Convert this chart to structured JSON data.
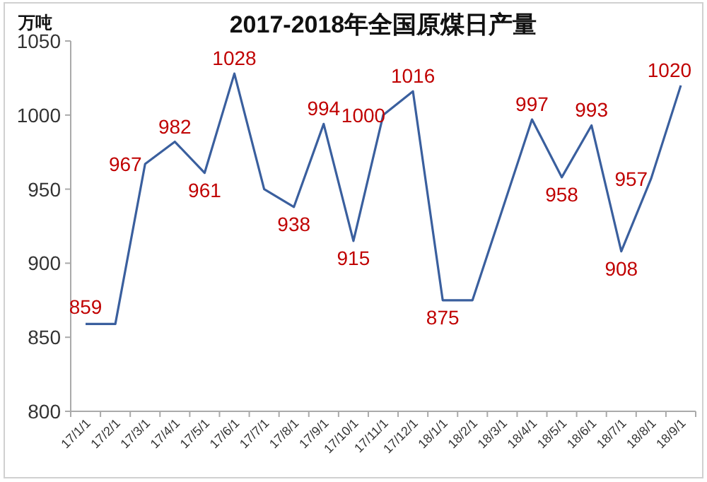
{
  "chart_data": {
    "type": "line",
    "title": "2017-2018年全国原煤日产量",
    "ylabel": "万吨",
    "categories": [
      "17/1/1",
      "17/2/1",
      "17/3/1",
      "17/4/1",
      "17/5/1",
      "17/6/1",
      "17/7/1",
      "17/8/1",
      "17/9/1",
      "17/10/1",
      "17/11/1",
      "17/12/1",
      "18/1/1",
      "18/2/1",
      "18/3/1",
      "18/4/1",
      "18/5/1",
      "18/6/1",
      "18/7/1",
      "18/8/1",
      "18/9/1"
    ],
    "series": [
      {
        "color": "#3a5f9e",
        "values": [
          859,
          859,
          967,
          982,
          961,
          1028,
          950,
          938,
          994,
          915,
          1000,
          1016,
          875,
          875,
          936,
          997,
          958,
          993,
          908,
          957,
          1020
        ],
        "value_labels": [
          "859",
          null,
          "967",
          "982",
          "961",
          "1028",
          null,
          "938",
          "994",
          "915",
          "1000",
          "1016",
          "875",
          null,
          null,
          "997",
          "958",
          "993",
          "908",
          "957",
          "1020"
        ]
      }
    ],
    "ylim": [
      800,
      1050
    ],
    "yticks": [
      800,
      850,
      900,
      950,
      1000,
      1050
    ],
    "grid": false,
    "marker": "none",
    "line_style": "solid"
  }
}
